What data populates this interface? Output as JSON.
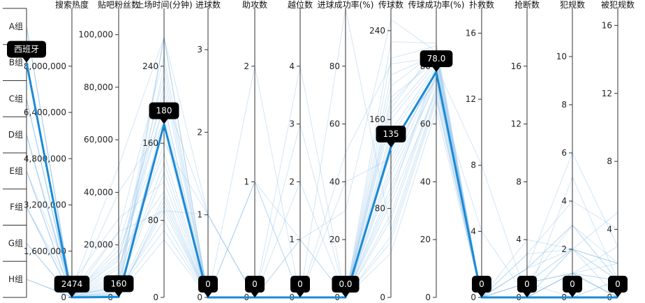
{
  "chart_data": {
    "type": "parallel-coordinates",
    "axes": [
      {
        "key": "group",
        "title": "",
        "kind": "category",
        "categories": [
          "A组",
          "B组",
          "C组",
          "D组",
          "E组",
          "F组",
          "G组",
          "H组"
        ]
      },
      {
        "key": "search",
        "title": "搜索热度",
        "kind": "value",
        "range": [
          0,
          10000000
        ],
        "ticks": [
          0,
          1600000,
          3200000,
          4800000,
          6400000,
          8000000
        ],
        "tick_labels": [
          "0",
          "1,600,000",
          "3,200,000",
          "4,800,000",
          "6,400,000",
          "8,000,000"
        ]
      },
      {
        "key": "fans",
        "title": "贴吧粉丝数",
        "kind": "value",
        "range": [
          0,
          110000
        ],
        "ticks": [
          0,
          20000,
          40000,
          60000,
          80000,
          100000
        ],
        "tick_labels": [
          "0",
          "20,000",
          "40,000",
          "60,000",
          "80,000",
          "100,000"
        ]
      },
      {
        "key": "time",
        "title": "上场时间(分钟)",
        "kind": "value",
        "range": [
          0,
          300
        ],
        "ticks": [
          0,
          80,
          160,
          240
        ],
        "tick_labels": [
          "0",
          "80",
          "160",
          "240"
        ]
      },
      {
        "key": "goals",
        "title": "进球数",
        "kind": "value",
        "range": [
          0,
          3.5
        ],
        "ticks": [
          0,
          1,
          2,
          3
        ],
        "tick_labels": [
          "0",
          "1",
          "2",
          "3"
        ]
      },
      {
        "key": "assists",
        "title": "助攻数",
        "kind": "value",
        "range": [
          0,
          2.5
        ],
        "ticks": [
          0,
          1,
          2
        ],
        "tick_labels": [
          "0",
          "1",
          "2"
        ]
      },
      {
        "key": "offside",
        "title": "越位数",
        "kind": "value",
        "range": [
          0,
          5
        ],
        "ticks": [
          0,
          1,
          2,
          3,
          4
        ],
        "tick_labels": [
          "0",
          "1",
          "2",
          "3",
          "4"
        ]
      },
      {
        "key": "shot_rate",
        "title": "进球成功率(%)",
        "kind": "value",
        "range": [
          0,
          100
        ],
        "ticks": [
          0,
          20,
          40,
          60,
          80
        ],
        "tick_labels": [
          "0",
          "20",
          "40",
          "60",
          "80"
        ]
      },
      {
        "key": "passes",
        "title": "传球数",
        "kind": "value",
        "range": [
          0,
          260
        ],
        "ticks": [
          0,
          80,
          160,
          240
        ],
        "tick_labels": [
          "0",
          "80",
          "160",
          "240"
        ]
      },
      {
        "key": "pass_rate",
        "title": "传球成功率(%)",
        "kind": "value",
        "range": [
          0,
          100
        ],
        "ticks": [
          0,
          20,
          40,
          60,
          80
        ],
        "tick_labels": [
          "0",
          "20",
          "40",
          "60",
          "80"
        ]
      },
      {
        "key": "saves",
        "title": "扑救数",
        "kind": "value",
        "range": [
          0,
          17.5
        ],
        "ticks": [
          0,
          4,
          8,
          12,
          16
        ],
        "tick_labels": [
          "0",
          "4",
          "8",
          "12",
          "16"
        ]
      },
      {
        "key": "tackles",
        "title": "抢断数",
        "kind": "value",
        "range": [
          0,
          20
        ],
        "ticks": [
          0,
          4,
          8,
          12,
          16
        ],
        "tick_labels": [
          "0",
          "4",
          "8",
          "12",
          "16"
        ]
      },
      {
        "key": "fouls",
        "title": "犯规数",
        "kind": "value",
        "range": [
          0,
          12
        ],
        "ticks": [
          0,
          2,
          4,
          6,
          8,
          10
        ],
        "tick_labels": [
          "0",
          "2",
          "4",
          "6",
          "8",
          "10"
        ]
      },
      {
        "key": "fouled",
        "title": "被犯规数",
        "kind": "value",
        "range": [
          0,
          17
        ],
        "ticks": [
          0,
          4,
          8,
          12,
          16
        ],
        "tick_labels": [
          "0",
          "4",
          "8",
          "12",
          "16"
        ]
      }
    ],
    "highlighted": {
      "group": "B组",
      "search": 2474,
      "fans": 160,
      "time": 180,
      "goals": 0,
      "assists": 0,
      "offside": 0,
      "shot_rate": 0.0,
      "passes": 135,
      "pass_rate": 78.0,
      "saves": 0,
      "tackles": 0,
      "fouls": 0,
      "fouled": 0
    },
    "tooltips": [
      "西班牙",
      "2474",
      "160",
      "180",
      "0",
      "0",
      "0",
      "0.0",
      "135",
      "78.0",
      "0",
      "0",
      "0",
      "0"
    ],
    "records": [
      [
        "B组",
        2474,
        160,
        180,
        0,
        0,
        0,
        0,
        135,
        78,
        0,
        0,
        0,
        0
      ],
      [
        "A组",
        150000,
        3000,
        270,
        1,
        0,
        1,
        30,
        250,
        85,
        0,
        2,
        3,
        2
      ],
      [
        "B组",
        40000,
        8000,
        270,
        0,
        1,
        0,
        0,
        180,
        82,
        0,
        1,
        2,
        1
      ],
      [
        "C组",
        20000,
        1500,
        90,
        1,
        0,
        0,
        100,
        60,
        70,
        0,
        0,
        1,
        3
      ],
      [
        "D组",
        80000,
        40000,
        180,
        0,
        0,
        4,
        0,
        140,
        75,
        0,
        3,
        4,
        4
      ],
      [
        "E组",
        5000,
        25000,
        90,
        0,
        0,
        0,
        0,
        90,
        80,
        8,
        0,
        0,
        0
      ],
      [
        "F组",
        300000,
        50000,
        270,
        0,
        0,
        0,
        0,
        170,
        86,
        0,
        0,
        5,
        1
      ],
      [
        "G组",
        10000,
        5000,
        180,
        0,
        2,
        0,
        0,
        200,
        84,
        0,
        4,
        2,
        2
      ],
      [
        "H组",
        2000,
        2000,
        105,
        0,
        0,
        0,
        0,
        70,
        72,
        4,
        0,
        0,
        0
      ],
      [
        "A组",
        60000,
        12000,
        150,
        0,
        0,
        2,
        0,
        120,
        79,
        0,
        1,
        1,
        0
      ],
      [
        "C组",
        7000,
        20000,
        210,
        1,
        0,
        0,
        50,
        210,
        83,
        0,
        2,
        3,
        1
      ],
      [
        "D组",
        1000,
        800,
        270,
        0,
        0,
        0,
        0,
        130,
        76,
        0,
        0,
        2,
        5
      ],
      [
        "E组",
        500000,
        30000,
        120,
        0,
        1,
        1,
        0,
        100,
        77,
        0,
        1,
        0,
        0
      ],
      [
        "F组",
        3000,
        1000,
        60,
        0,
        0,
        0,
        0,
        50,
        68,
        0,
        0,
        1,
        1
      ],
      [
        "G组",
        25000,
        15000,
        200,
        0,
        0,
        3,
        0,
        160,
        81,
        0,
        2,
        6,
        3
      ],
      [
        "H组",
        9000,
        6000,
        240,
        0,
        0,
        0,
        0,
        230,
        88,
        0,
        0,
        1,
        0
      ],
      [
        "A组",
        40000,
        18000,
        170,
        0,
        0,
        0,
        0,
        150,
        80,
        0,
        1,
        2,
        2
      ],
      [
        "B组",
        15000,
        4000,
        130,
        0,
        0,
        0,
        0,
        110,
        74,
        0,
        0,
        0,
        1
      ],
      [
        "C组",
        800,
        300,
        100,
        0,
        0,
        0,
        0,
        40,
        65,
        0,
        0,
        1,
        0
      ],
      [
        "D组",
        200000,
        25000,
        250,
        0,
        1,
        0,
        0,
        190,
        85,
        0,
        3,
        2,
        2
      ],
      [
        "E组",
        4000,
        3000,
        80,
        0,
        0,
        1,
        0,
        75,
        73,
        0,
        0,
        0,
        0
      ],
      [
        "F组",
        70000,
        9000,
        220,
        0,
        0,
        0,
        0,
        175,
        84,
        0,
        1,
        3,
        1
      ],
      [
        "G组",
        1200,
        700,
        190,
        0,
        0,
        0,
        0,
        145,
        79,
        0,
        0,
        1,
        0
      ],
      [
        "H组",
        35000,
        7000,
        160,
        1,
        0,
        0,
        40,
        125,
        78,
        0,
        2,
        2,
        1
      ],
      [
        "A组",
        2500,
        1200,
        95,
        0,
        0,
        0,
        0,
        85,
        71,
        0,
        0,
        0,
        0
      ],
      [
        "B组",
        18000,
        11000,
        200,
        0,
        0,
        0,
        0,
        165,
        82,
        0,
        1,
        1,
        1
      ],
      [
        "C组",
        90000,
        16000,
        110,
        0,
        0,
        0,
        0,
        95,
        76,
        0,
        0,
        2,
        0
      ],
      [
        "D组",
        6000,
        2500,
        70,
        0,
        0,
        0,
        0,
        55,
        69,
        0,
        0,
        0,
        1
      ],
      [
        "E组",
        45000,
        14000,
        230,
        0,
        0,
        0,
        0,
        215,
        87,
        0,
        1,
        1,
        2
      ],
      [
        "F组",
        11000,
        4500,
        140,
        0,
        0,
        0,
        0,
        115,
        77,
        0,
        0,
        1,
        0
      ]
    ]
  }
}
